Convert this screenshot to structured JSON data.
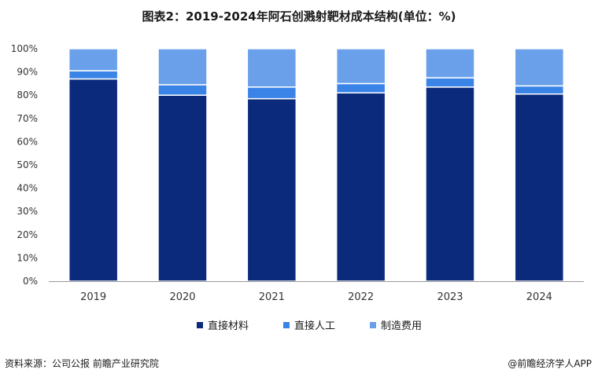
{
  "title": "图表2：2019-2024年阿石创溅射靶材成本结构(单位：%)",
  "footer": {
    "source": "资料来源：公司公报 前瞻产业研究院",
    "brand": "@前瞻经济学人APP"
  },
  "chart_data": {
    "type": "bar",
    "stacked": true,
    "categories": [
      "2019",
      "2020",
      "2021",
      "2022",
      "2023",
      "2024"
    ],
    "series": [
      {
        "name": "直接材料",
        "values": [
          87,
          80,
          78.5,
          81,
          83.5,
          80.5
        ],
        "color": "#0b2a7c"
      },
      {
        "name": "直接人工",
        "values": [
          3.5,
          4.5,
          5,
          4,
          4,
          3.5
        ],
        "color": "#3a84e8"
      },
      {
        "name": "制造费用",
        "values": [
          9.5,
          15.5,
          16.5,
          15,
          12.5,
          16
        ],
        "color": "#6aa0ea"
      }
    ],
    "ylim": [
      0,
      100
    ],
    "yticks": [
      "0%",
      "10%",
      "20%",
      "30%",
      "40%",
      "50%",
      "60%",
      "70%",
      "80%",
      "90%",
      "100%"
    ],
    "legend": "bottom",
    "grid": false
  }
}
